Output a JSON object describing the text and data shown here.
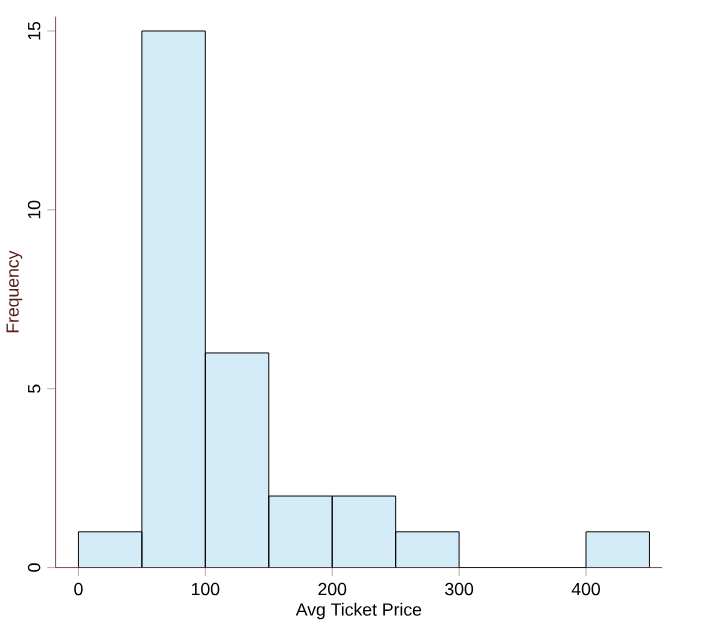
{
  "chart_data": {
    "type": "histogram",
    "xlabel": "Avg Ticket Price",
    "ylabel": "Frequency",
    "bins": [
      0,
      50,
      100,
      150,
      200,
      250,
      300,
      350,
      400,
      450
    ],
    "values": [
      1,
      15,
      6,
      2,
      2,
      1,
      0,
      0,
      1
    ],
    "color": "#d4ecf7",
    "xlim": [
      -18,
      460
    ],
    "ylim": [
      0,
      15.4
    ],
    "xticks": [
      0,
      100,
      200,
      300,
      400
    ],
    "yticks": [
      0,
      5,
      10,
      15
    ]
  }
}
